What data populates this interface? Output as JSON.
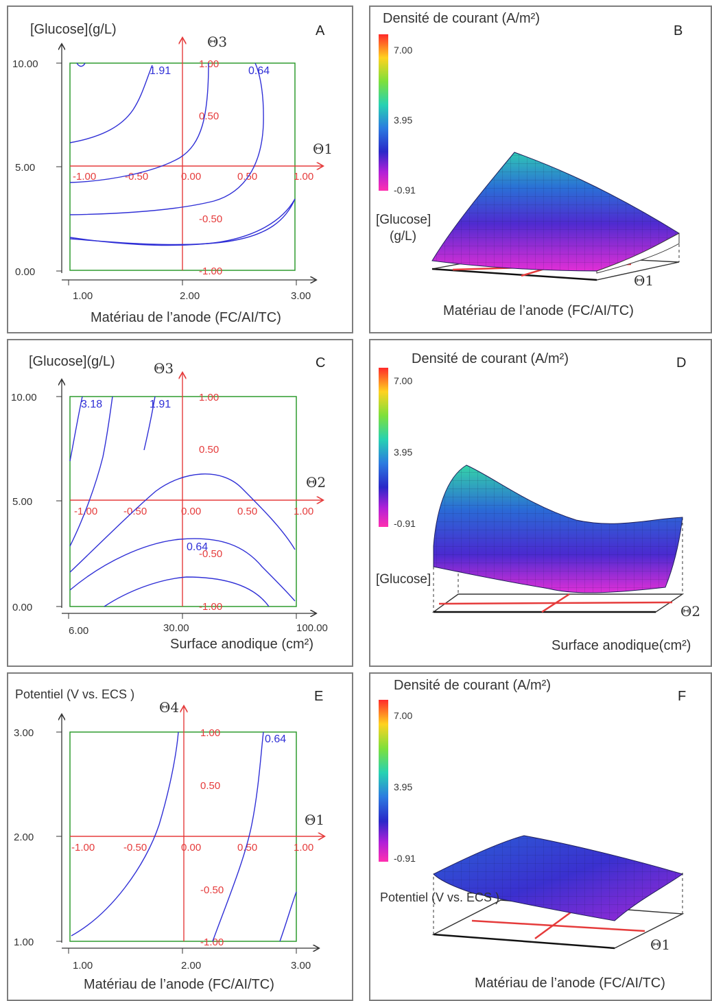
{
  "panels": [
    {
      "id": "A",
      "ylabel": "[Glucose](g/L)",
      "xlabel": "Matériau de l’anode (FC/AI/TC)",
      "xticks": [
        "1.00",
        "2.00",
        "3.00"
      ],
      "yticks": [
        "0.00",
        "5.00",
        "10.00"
      ],
      "theta_x": "Θ1",
      "theta_y": "Θ3",
      "coded_x": [
        "-1.00",
        "-0.50",
        "0.00",
        "0.50",
        "1.00"
      ],
      "coded_y": [
        "1.00",
        "0.50",
        "-0.50",
        "-1.00"
      ],
      "contour_labels": [
        "1.91",
        "0.64"
      ]
    },
    {
      "id": "C",
      "ylabel": "[Glucose](g/L)",
      "xlabel": "Surface anodique (cm²)",
      "xticks": [
        "6.00",
        "30.00",
        "100.00"
      ],
      "yticks": [
        "0.00",
        "5.00",
        "10.00"
      ],
      "theta_x": "Θ2",
      "theta_y": "Θ3",
      "coded_x": [
        "-1.00",
        "-0.50",
        "0.00",
        "0.50",
        "1.00"
      ],
      "coded_y": [
        "1.00",
        "0.50",
        "-0.50",
        "-1.00"
      ],
      "contour_labels": [
        "3.18",
        "1.91",
        "0.64"
      ]
    },
    {
      "id": "E",
      "ylabel": "Potentiel (V vs. ECS )",
      "xlabel": "Matériau de l’anode (FC/AI/TC)",
      "xticks": [
        "1.00",
        "2.00",
        "3.00"
      ],
      "yticks": [
        "1.00",
        "2.00",
        "3.00"
      ],
      "theta_x": "Θ1",
      "theta_y": "Θ4",
      "coded_x": [
        "-1.00",
        "-0.50",
        "0.00",
        "0.50",
        "1.00"
      ],
      "coded_y": [
        "1.00",
        "0.50",
        "-0.50",
        "-1.00"
      ],
      "contour_labels": [
        "0.64"
      ]
    }
  ],
  "surfaces": [
    {
      "id": "B",
      "title": "Densité de courant (A/m²)",
      "axis_label": "[Glucose]\n(g/L)",
      "axis_label_line1": "[Glucose]",
      "axis_label_line2": "(g/L)",
      "xlabel": "Matériau de l’anode (FC/AI/TC)",
      "theta": "Θ1"
    },
    {
      "id": "D",
      "title": "Densité de courant (A/m²)",
      "axis_label_line1": "[Glucose]",
      "axis_label_line2": "",
      "xlabel": "Surface anodique(cm²)",
      "theta": "Θ2"
    },
    {
      "id": "F",
      "title": "Densité de courant (A/m²)",
      "axis_label_line1": "Potentiel (V vs. ECS )",
      "axis_label_line2": "",
      "xlabel": "Matériau de l’anode (FC/AI/TC)",
      "theta": "Θ1"
    }
  ],
  "colorbar": {
    "ticks": [
      "7.00",
      "3.95",
      "-0.91"
    ]
  },
  "colors": {
    "contour": "#2f2fd6",
    "axis_coded": "#e53b3b",
    "box": "#2e9b2e",
    "frame": "#7d7d7d"
  },
  "chart_data": [
    {
      "type": "contour",
      "panel": "A",
      "x_range": [
        1,
        3
      ],
      "y_range": [
        0,
        10
      ],
      "contour_levels": [
        1.91,
        0.64
      ]
    },
    {
      "type": "contour",
      "panel": "C",
      "x_range": [
        6,
        100
      ],
      "y_range": [
        0,
        10
      ],
      "contour_levels": [
        3.18,
        1.91,
        0.64
      ]
    },
    {
      "type": "contour",
      "panel": "E",
      "x_range": [
        1,
        3
      ],
      "y_range": [
        1,
        3
      ],
      "contour_levels": [
        0.64
      ]
    },
    {
      "type": "surface",
      "panel": "B",
      "z_range": [
        -0.91,
        7.0
      ]
    },
    {
      "type": "surface",
      "panel": "D",
      "z_range": [
        -0.91,
        7.0
      ]
    },
    {
      "type": "surface",
      "panel": "F",
      "z_range": [
        -0.91,
        7.0
      ]
    }
  ]
}
